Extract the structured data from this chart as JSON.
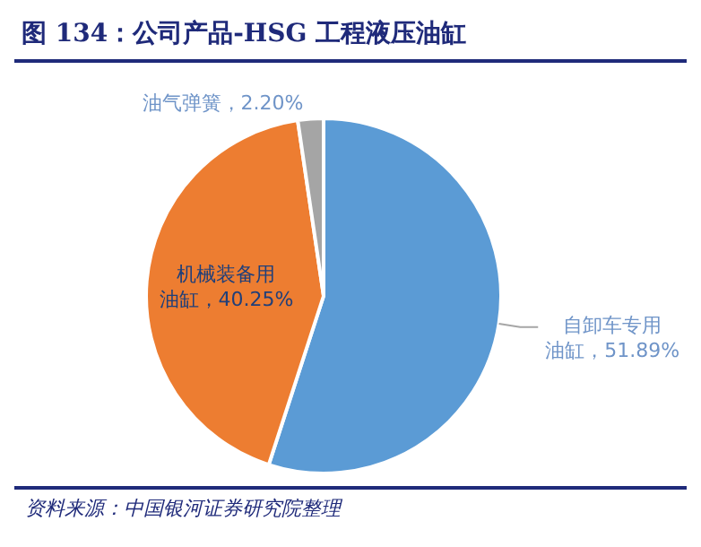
{
  "chart_data": {
    "type": "pie",
    "title": "图 134：公司产品-HSG 工程液压油缸",
    "categories": [
      "自卸车专用油缸",
      "机械装备用油缸",
      "油气弹簧"
    ],
    "values": [
      51.89,
      40.25,
      2.2
    ],
    "value_labels": [
      "51.89%",
      "40.25%",
      "2.20%"
    ],
    "colors": [
      "#5b9bd5",
      "#ed7d31",
      "#a5a5a5"
    ],
    "legend": false,
    "annotations": [
      "资料来源：中国银河证券研究院整理"
    ]
  }
}
